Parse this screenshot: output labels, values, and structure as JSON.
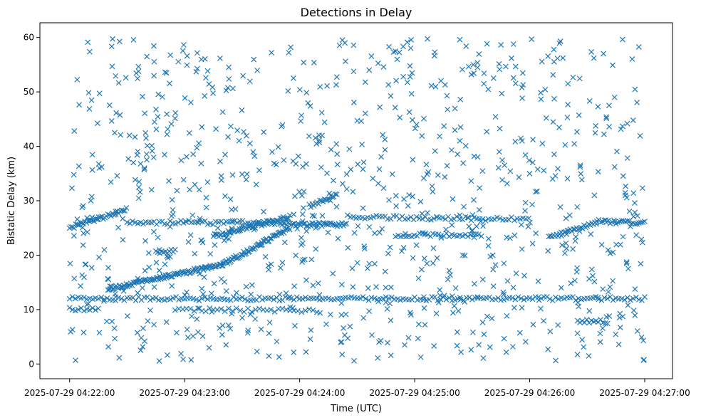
{
  "chart_data": {
    "type": "scatter",
    "title": "Detections in Delay",
    "xlabel": "Time (UTC)",
    "ylabel": "Bistatic Delay (km)",
    "marker": "x",
    "marker_color": "#1f77b4",
    "xlim_seconds": [
      -15.5,
      314.5
    ],
    "x_unit": "seconds after 2025-07-29 04:22:00",
    "ylim": [
      -2.7,
      62.7
    ],
    "x_ticks": [
      {
        "value": 0,
        "label": "2025-07-29 04:22:00"
      },
      {
        "value": 60,
        "label": "2025-07-29 04:23:00"
      },
      {
        "value": 120,
        "label": "2025-07-29 04:24:00"
      },
      {
        "value": 180,
        "label": "2025-07-29 04:25:00"
      },
      {
        "value": 240,
        "label": "2025-07-29 04:26:00"
      },
      {
        "value": 300,
        "label": "2025-07-29 04:27:00"
      }
    ],
    "y_ticks": [
      {
        "value": 0,
        "label": "0"
      },
      {
        "value": 10,
        "label": "10"
      },
      {
        "value": 20,
        "label": "20"
      },
      {
        "value": 30,
        "label": "30"
      },
      {
        "value": 40,
        "label": "40"
      },
      {
        "value": 50,
        "label": "50"
      },
      {
        "value": 60,
        "label": "60"
      }
    ],
    "tracks": [
      {
        "name": "track-rising-25-28",
        "t_start": 0,
        "t_end": 30,
        "delay_start": 25.0,
        "delay_end": 28.4,
        "step": 0.8
      },
      {
        "name": "track-flat-12",
        "t_start": 0,
        "t_end": 300,
        "delay_start": 12.0,
        "delay_end": 12.0,
        "step": 1.5
      },
      {
        "name": "track-flat-10",
        "t_start": 0,
        "t_end": 15,
        "delay_start": 10.0,
        "delay_end": 10.0,
        "step": 1.5
      },
      {
        "name": "track-rising-14-18",
        "t_start": 20,
        "t_end": 80,
        "delay_start": 13.8,
        "delay_end": 18.3,
        "step": 0.6
      },
      {
        "name": "track-rising-18-25",
        "t_start": 80,
        "t_end": 115,
        "delay_start": 18.3,
        "delay_end": 25.0,
        "step": 0.6
      },
      {
        "name": "track-flat-26-a",
        "t_start": 30,
        "t_end": 110,
        "delay_start": 26.0,
        "delay_end": 26.0,
        "step": 1.4
      },
      {
        "name": "track-rising-23-27",
        "t_start": 75,
        "t_end": 115,
        "delay_start": 23.5,
        "delay_end": 27.0,
        "step": 0.7
      },
      {
        "name": "track-flat-25.5",
        "t_start": 110,
        "t_end": 145,
        "delay_start": 25.6,
        "delay_end": 25.6,
        "step": 0.8
      },
      {
        "name": "track-rising-29-31",
        "t_start": 125,
        "t_end": 140,
        "delay_start": 29.0,
        "delay_end": 31.2,
        "step": 0.8
      },
      {
        "name": "track-flat-27",
        "t_start": 145,
        "t_end": 240,
        "delay_start": 27.0,
        "delay_end": 26.6,
        "step": 1.5
      },
      {
        "name": "track-flat-23.7",
        "t_start": 170,
        "t_end": 215,
        "delay_start": 23.7,
        "delay_end": 23.7,
        "step": 1.4
      },
      {
        "name": "track-rising-23-26",
        "t_start": 250,
        "t_end": 275,
        "delay_start": 23.3,
        "delay_end": 26.0,
        "step": 0.8
      },
      {
        "name": "track-flat-26-b",
        "t_start": 275,
        "t_end": 300,
        "delay_start": 26.2,
        "delay_end": 26.0,
        "step": 1.0
      },
      {
        "name": "track-flat-10-b",
        "t_start": 55,
        "t_end": 130,
        "delay_start": 10.0,
        "delay_end": 9.8,
        "step": 2.0
      },
      {
        "name": "track-flat-20.7",
        "t_start": 45,
        "t_end": 55,
        "delay_start": 20.7,
        "delay_end": 20.7,
        "step": 1.0
      },
      {
        "name": "track-flat-8",
        "t_start": 265,
        "t_end": 280,
        "delay_start": 8.0,
        "delay_end": 7.8,
        "step": 1.2
      }
    ],
    "noise": {
      "count": 900,
      "t_range": [
        0,
        300
      ],
      "delay_range": [
        0.5,
        59.8
      ],
      "seed": 20250729
    }
  }
}
